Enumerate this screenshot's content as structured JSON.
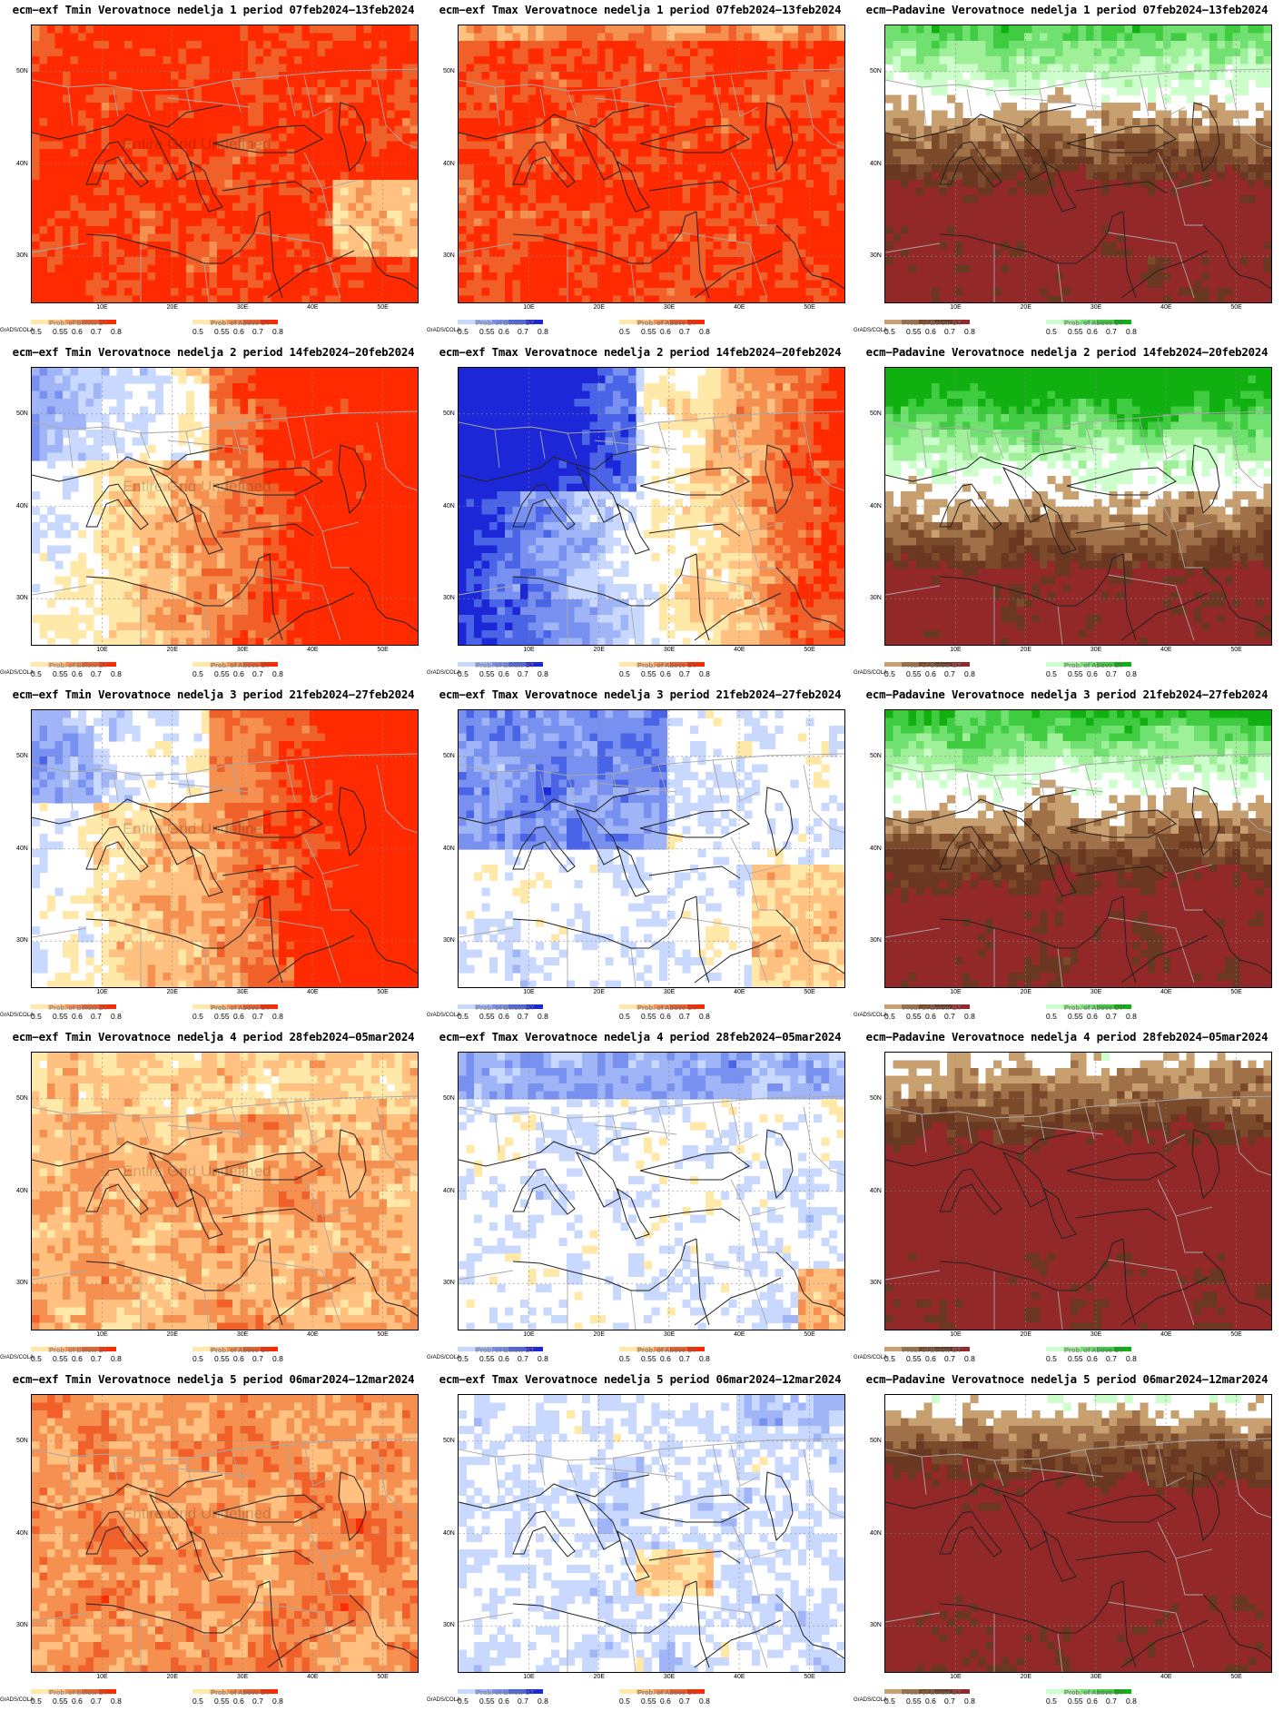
{
  "panels": [
    {
      "title": "ecm−exf Tmin Verovatnoce nedelja 1 period 07feb2024−13feb2024",
      "var": "tmin",
      "week": 1,
      "watermark": "Entire Grid Undefined"
    },
    {
      "title": "ecm−exf Tmax Verovatnoce nedelja 1 period 07feb2024−13feb2024",
      "var": "tmax",
      "week": 1,
      "watermark": ""
    },
    {
      "title": "ecm−Padavine Verovatnoce nedelja 1 period 07feb2024−13feb2024",
      "var": "prcp",
      "week": 1,
      "watermark": ""
    },
    {
      "title": "ecm−exf Tmin Verovatnoce nedelja 2 period 14feb2024−20feb2024",
      "var": "tmin",
      "week": 2,
      "watermark": "Entire Grid Undefined"
    },
    {
      "title": "ecm−exf Tmax Verovatnoce nedelja 2 period 14feb2024−20feb2024",
      "var": "tmax",
      "week": 2,
      "watermark": ""
    },
    {
      "title": "ecm−Padavine Verovatnoce nedelja 2 period 14feb2024−20feb2024",
      "var": "prcp",
      "week": 2,
      "watermark": ""
    },
    {
      "title": "ecm−exf Tmin Verovatnoce nedelja 3 period 21feb2024−27feb2024",
      "var": "tmin",
      "week": 3,
      "watermark": "Entire Grid Undefined"
    },
    {
      "title": "ecm−exf Tmax Verovatnoce nedelja 3 period 21feb2024−27feb2024",
      "var": "tmax",
      "week": 3,
      "watermark": ""
    },
    {
      "title": "ecm−Padavine Verovatnoce nedelja 3 period 21feb2024−27feb2024",
      "var": "prcp",
      "week": 3,
      "watermark": ""
    },
    {
      "title": "ecm−exf Tmin Verovatnoce nedelja 4 period 28feb2024−05mar2024",
      "var": "tmin",
      "week": 4,
      "watermark": "Entire Grid Undefined"
    },
    {
      "title": "ecm−exf Tmax Verovatnoce nedelja 4 period 28feb2024−05mar2024",
      "var": "tmax",
      "week": 4,
      "watermark": ""
    },
    {
      "title": "ecm−Padavine Verovatnoce nedelja 4 period 28feb2024−05mar2024",
      "var": "prcp",
      "week": 4,
      "watermark": ""
    },
    {
      "title": "ecm−exf Tmin Verovatnoce nedelja 5 period 06mar2024−12mar2024",
      "var": "tmin",
      "week": 5,
      "watermark": "Entire Grid Undefined"
    },
    {
      "title": "ecm−exf Tmax Verovatnoce nedelja 5 period 06mar2024−12mar2024",
      "var": "tmax",
      "week": 5,
      "watermark": ""
    },
    {
      "title": "ecm−Padavine Verovatnoce nedelja 5 period 06mar2024−12mar2024",
      "var": "prcp",
      "week": 5,
      "watermark": ""
    }
  ],
  "axes": {
    "lat_labels": [
      "50N",
      "40N",
      "30N"
    ],
    "lon_labels": [
      "10E",
      "20E",
      "30E",
      "40E",
      "50E"
    ]
  },
  "legend": {
    "producer": "GrADS/COLA",
    "ticks": [
      "0.5",
      "0.55",
      "0.6",
      "0.7",
      "0.8"
    ],
    "below_temp": "Prob. of Below BT",
    "above_temp": "Prob. of Above UT"
  },
  "palettes": {
    "warm": [
      "#ffe8a8",
      "#ffc080",
      "#f59050",
      "#f2602a",
      "#ff2a00"
    ],
    "cold": [
      "#c8d8ff",
      "#a0b4f8",
      "#7890f0",
      "#4a64e8",
      "#1c28d8"
    ],
    "dry": [
      "#c8a070",
      "#a07048",
      "#7a4a2a",
      "#6a3820",
      "#922828"
    ],
    "wet": [
      "#ccffcc",
      "#a0f09a",
      "#70e070",
      "#40cc40",
      "#10b010"
    ]
  }
}
